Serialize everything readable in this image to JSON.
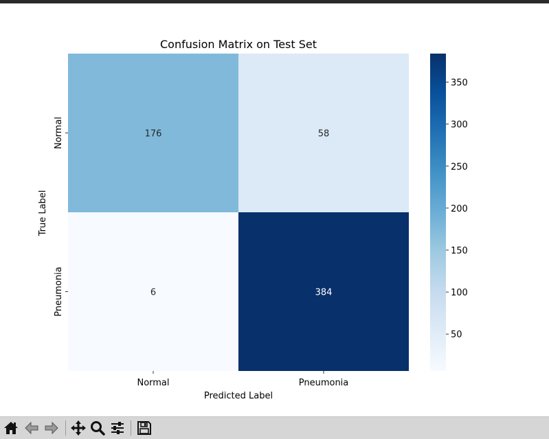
{
  "chart_data": {
    "type": "heatmap",
    "title": "Confusion Matrix on Test Set",
    "xlabel": "Predicted Label",
    "ylabel": "True Label",
    "x_categories": [
      "Normal",
      "Pneumonia"
    ],
    "y_categories": [
      "Normal",
      "Pneumonia"
    ],
    "values": [
      [
        176,
        58
      ],
      [
        6,
        384
      ]
    ],
    "colormap": "Blues",
    "vmin": 6,
    "vmax": 384,
    "colorbar_ticks": [
      50,
      100,
      150,
      200,
      250,
      300,
      350
    ],
    "annotate": true
  },
  "toolbar": {
    "buttons": [
      {
        "name": "home",
        "icon": "home-icon"
      },
      {
        "name": "back",
        "icon": "arrow-left-icon"
      },
      {
        "name": "forward",
        "icon": "arrow-right-icon"
      },
      {
        "name": "pan",
        "icon": "move-icon"
      },
      {
        "name": "zoom",
        "icon": "magnifier-icon"
      },
      {
        "name": "configure",
        "icon": "sliders-icon"
      },
      {
        "name": "save",
        "icon": "floppy-disk-icon"
      }
    ]
  },
  "colors": {
    "toolbar_bg": "#d6d6d6",
    "window_bar": "#2b2b2b"
  }
}
